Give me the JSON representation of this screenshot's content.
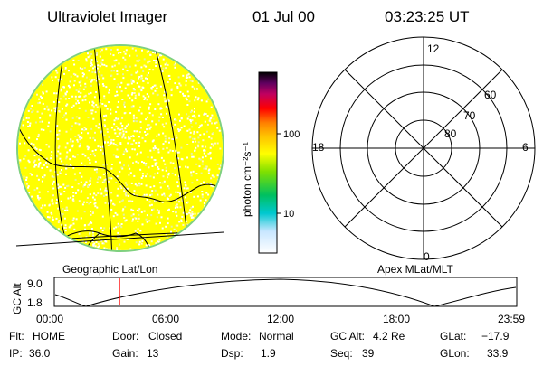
{
  "header": {
    "instrument": "Ultraviolet Imager",
    "date": "01 Jul 00",
    "time": "03:23:25 UT"
  },
  "earth_panel": {
    "caption": "Geographic Lat/Lon",
    "disk_color": "#ffff00",
    "limb_color": "#7fd07f"
  },
  "colorbar": {
    "unit_label": "photon cm⁻²s⁻¹",
    "ticks": [
      "100",
      "10"
    ]
  },
  "polar_panel": {
    "caption": "Apex MLat/MLT",
    "mlt_labels": {
      "top": "12",
      "left": "18",
      "right": "6",
      "bottom": "0"
    },
    "lat_labels": [
      "60",
      "70",
      "80"
    ]
  },
  "altitude_plot": {
    "ylabel": "GC Alt",
    "yticks": [
      "9.0",
      "1.8"
    ],
    "xticks": [
      "00:00",
      "06:00",
      "12:00",
      "18:00",
      "23:59"
    ],
    "current_time_color": "#ff0000",
    "current_time_hours": 3.39
  },
  "status": {
    "flt_label": "Flt:",
    "flt_value": "HOME",
    "door_label": "Door:",
    "door_value": "Closed",
    "mode_label": "Mode:",
    "mode_value": "Normal",
    "gcalt_label": "GC Alt:",
    "gcalt_value": "4.2 Re",
    "glat_label": "GLat:",
    "glat_value": "−17.9",
    "ip_label": "IP:",
    "ip_value": "36.0",
    "gain_label": "Gain:",
    "gain_value": "13",
    "dsp_label": "Dsp:",
    "dsp_value": "1.9",
    "seq_label": "Seq:",
    "seq_value": "39",
    "glon_label": "GLon:",
    "glon_value": "33.9"
  }
}
